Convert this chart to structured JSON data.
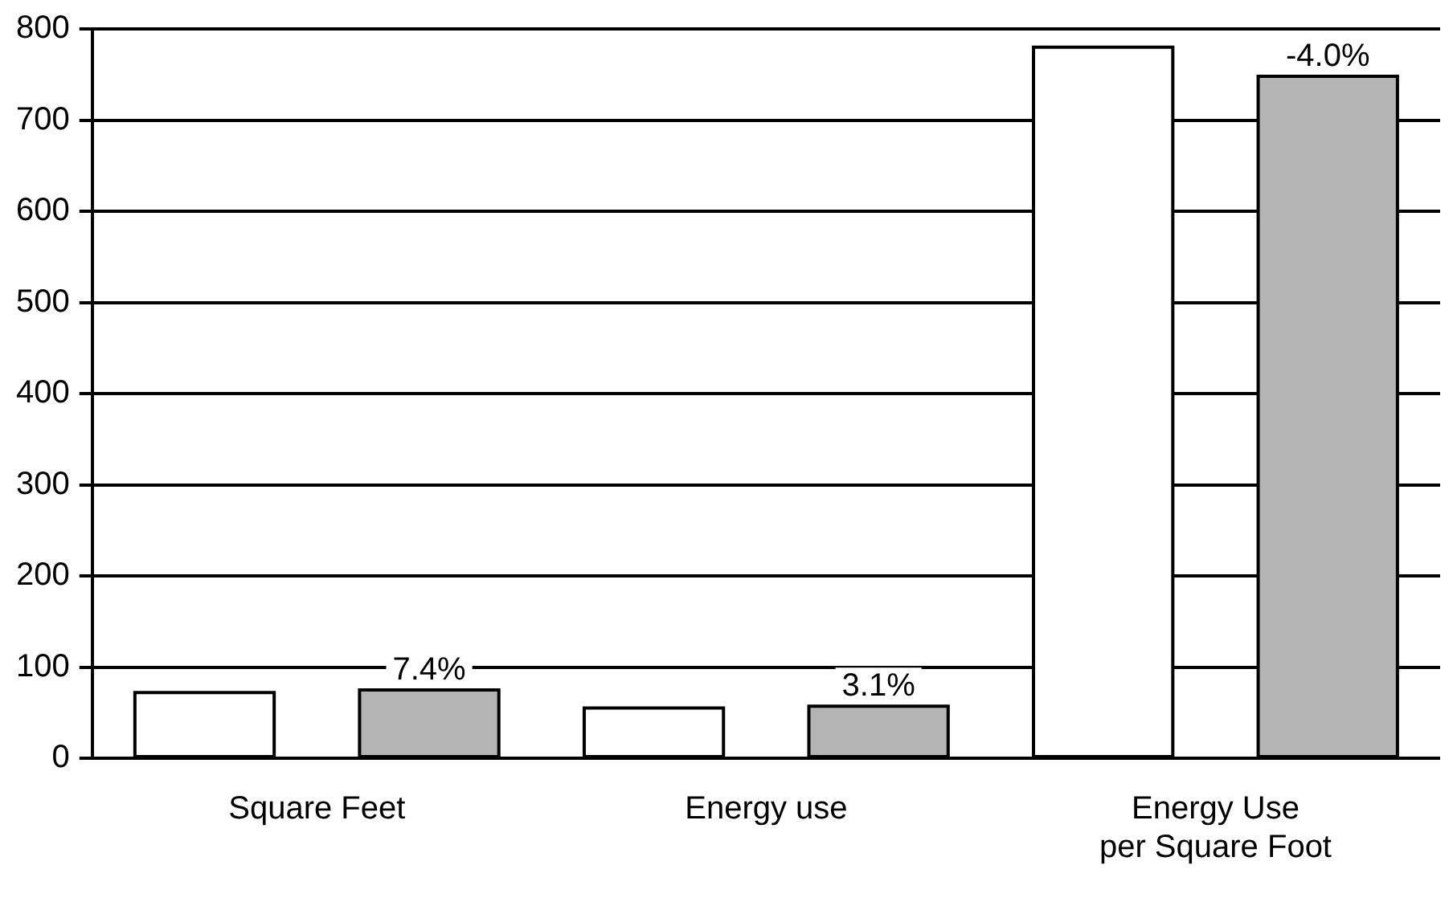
{
  "chart_data": {
    "type": "bar",
    "categories": [
      "Square Feet",
      "Energy use",
      "Energy Use\nper Square Foot"
    ],
    "series": [
      {
        "color": "#ffffff",
        "values": [
          72,
          55,
          780
        ]
      },
      {
        "color": "#b4b4b4",
        "values": [
          75,
          57,
          748
        ]
      }
    ],
    "annotations": [
      "7.4%",
      "3.1%",
      "-4.0%"
    ],
    "ylim": [
      0,
      800
    ],
    "yticks": [
      0,
      100,
      200,
      300,
      400,
      500,
      600,
      700,
      800
    ],
    "grid": "y",
    "legend": false
  }
}
